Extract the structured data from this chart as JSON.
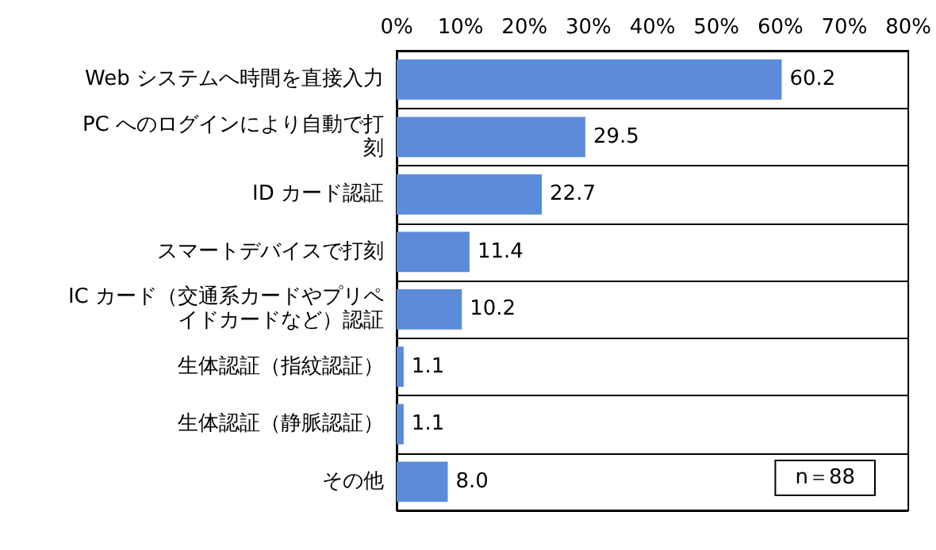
{
  "chart_data": {
    "type": "bar",
    "orientation": "horizontal",
    "categories": [
      "Web システムへ時間を直接入力",
      "PC へのログインにより自動で打刻",
      "ID カード認証",
      "スマートデバイスで打刻",
      "IC カード（交通系カードやプリペイドカードなど）認証",
      "生体認証（指紋認証）",
      "生体認証（静脈認証）",
      "その他"
    ],
    "values": [
      60.2,
      29.5,
      22.7,
      11.4,
      10.2,
      1.1,
      1.1,
      8.0
    ],
    "value_labels": [
      "60.2",
      "29.5",
      "22.7",
      "11.4",
      "10.2",
      "1.1",
      "1.1",
      "8.0"
    ],
    "color": "#5b8bd9",
    "xlim": [
      0,
      80
    ],
    "xticks": [
      {
        "value": 0,
        "label": "0%"
      },
      {
        "value": 10,
        "label": "10%"
      },
      {
        "value": 20,
        "label": "20%"
      },
      {
        "value": 30,
        "label": "30%"
      },
      {
        "value": 40,
        "label": "40%"
      },
      {
        "value": 50,
        "label": "50%"
      },
      {
        "value": 60,
        "label": "60%"
      },
      {
        "value": 70,
        "label": "70%"
      },
      {
        "value": 80,
        "label": "80%"
      }
    ],
    "grid": "y",
    "annotations": [
      "n＝88"
    ]
  }
}
